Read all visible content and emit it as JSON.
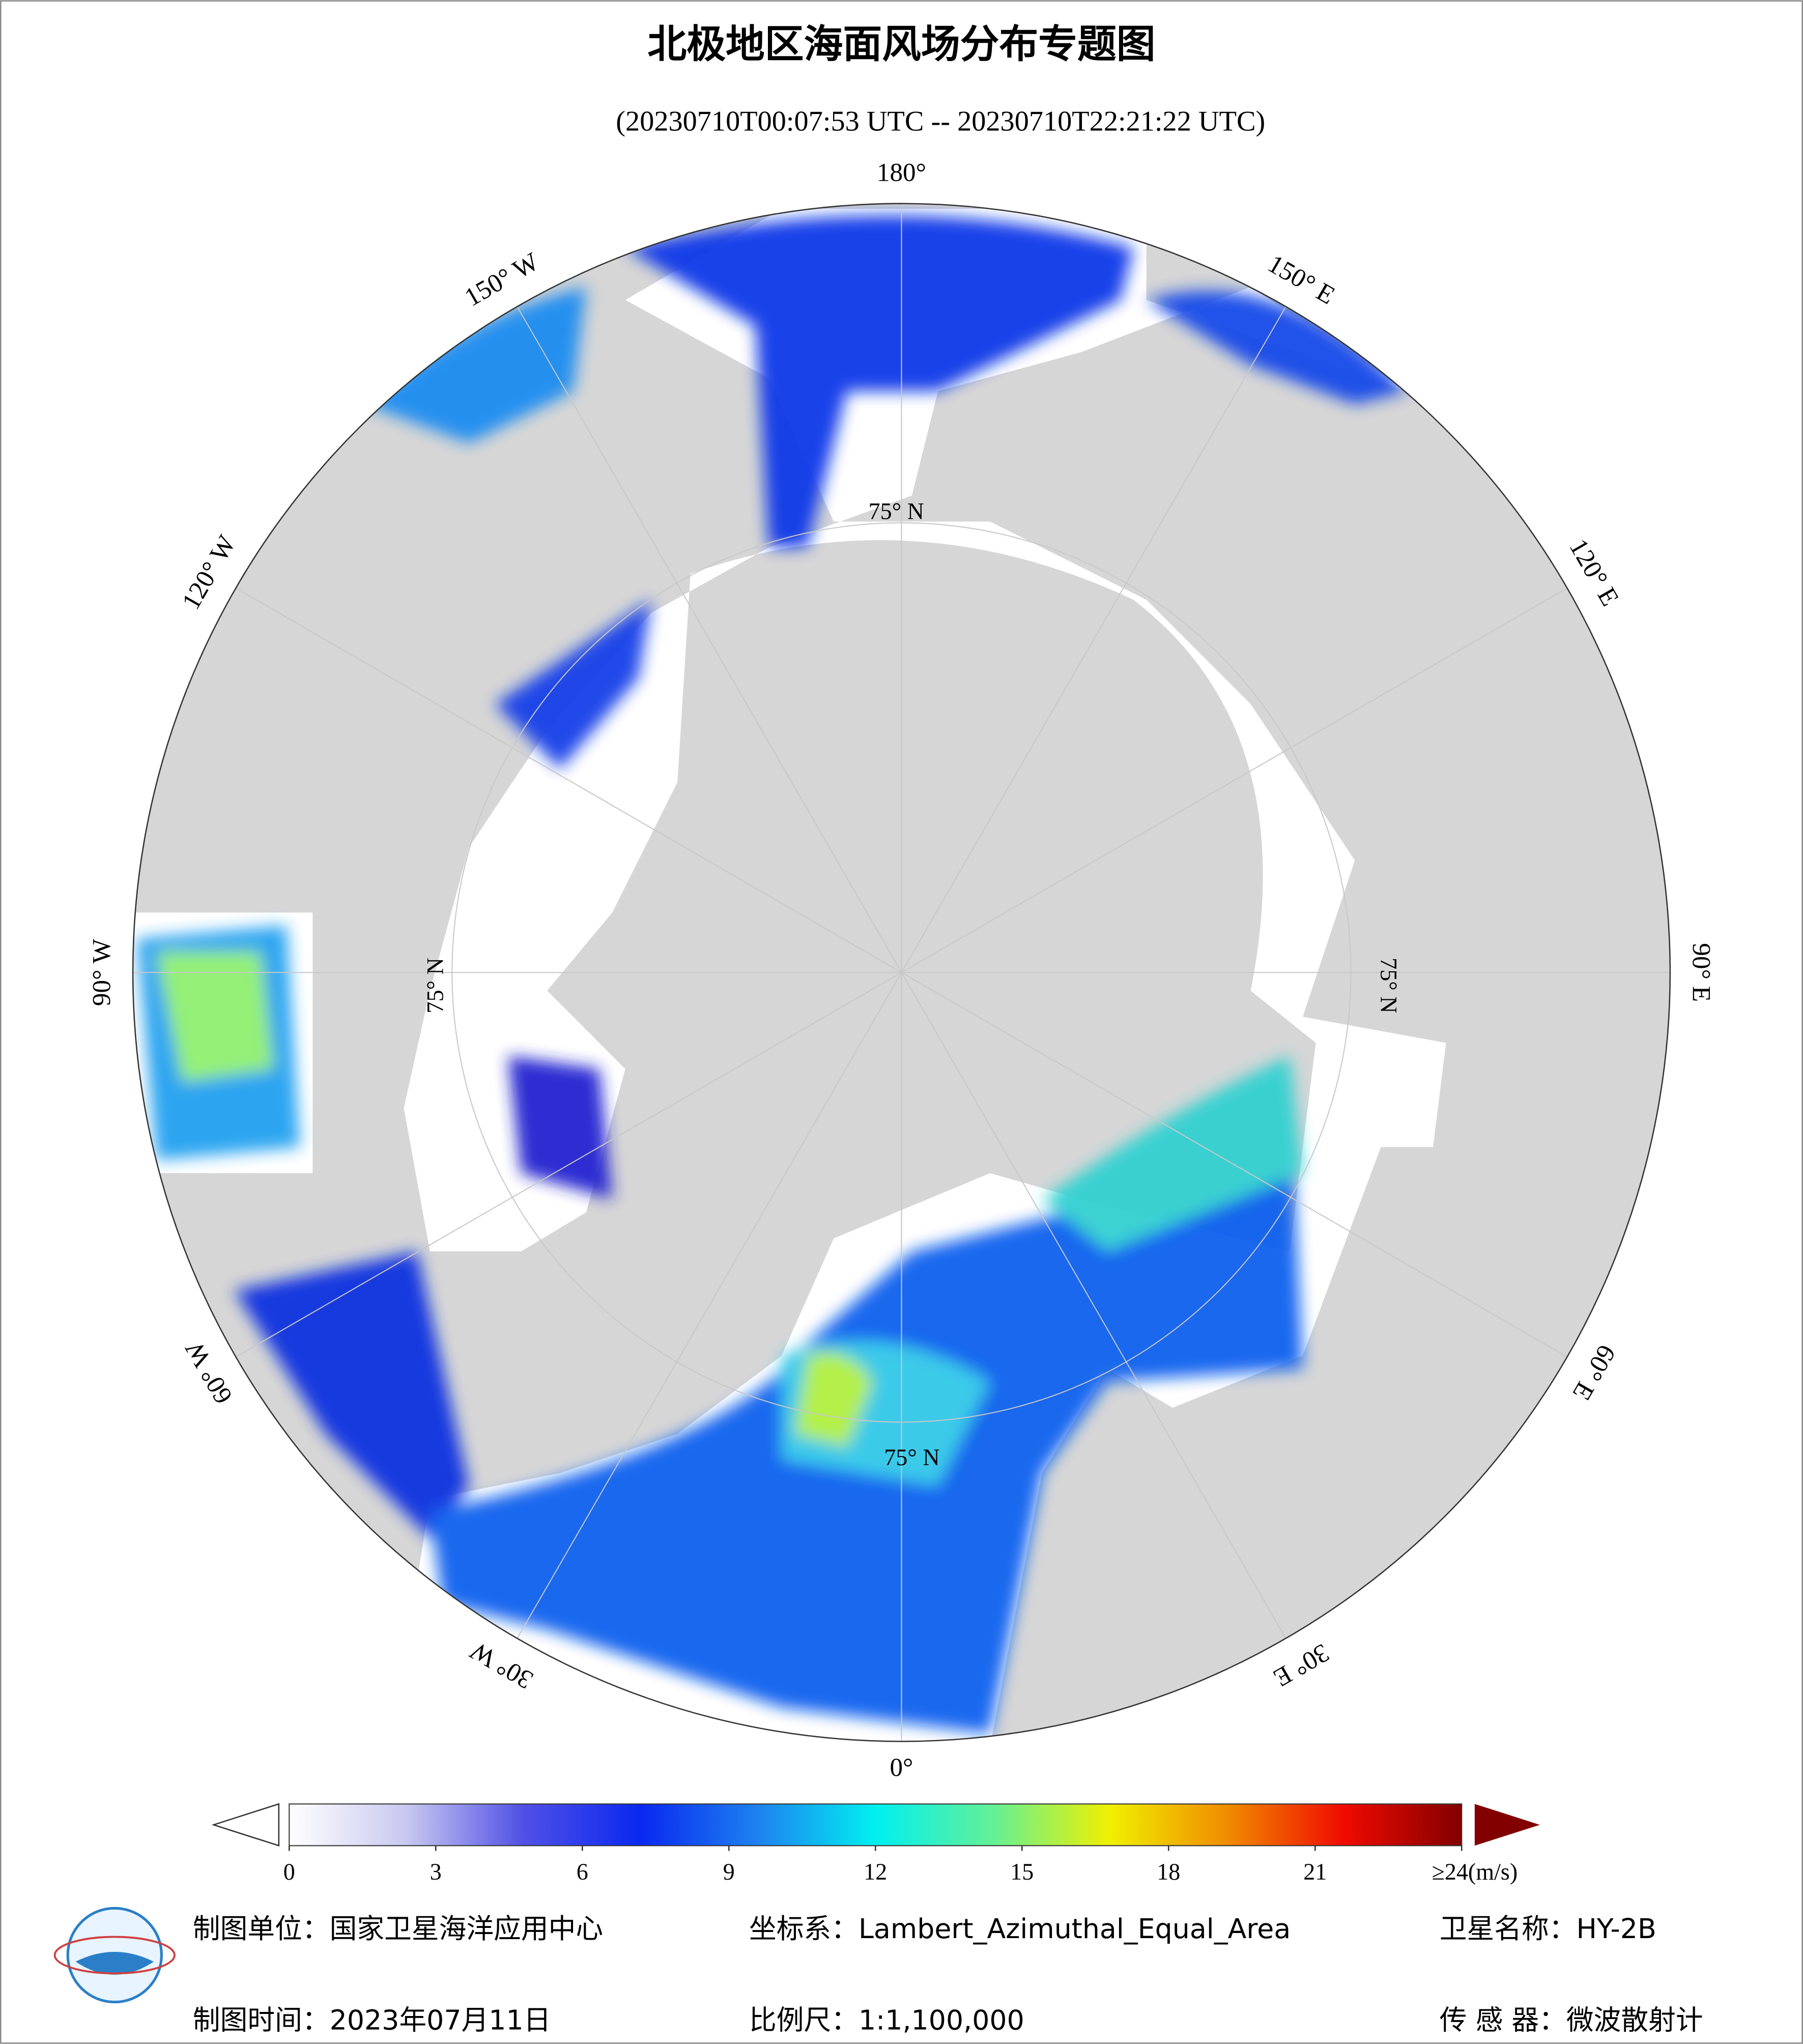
{
  "title": "北极地区海面风场分布专题图",
  "subtitle": "(20230710T00:07:53 UTC -- 20230710T22:21:22 UTC)",
  "map": {
    "lon_labels": [
      "0°",
      "30° E",
      "60° E",
      "90° E",
      "120° E",
      "150° E",
      "180°",
      "150° W",
      "120° W",
      "90° W",
      "60° W",
      "30° W"
    ],
    "lat_labels": [
      "75° N",
      "75° N",
      "75° N",
      "75° N"
    ]
  },
  "colorbar": {
    "range": [
      0,
      24
    ],
    "ticks": [
      0,
      3,
      6,
      9,
      12,
      15,
      18,
      21,
      {
        "value": 24,
        "label": "≥24(m/s)"
      }
    ],
    "colors": [
      "#ffffff",
      "#c8c8f0",
      "#5050e6",
      "#0a28f0",
      "#1e82f0",
      "#00f0f0",
      "#64f096",
      "#f0f000",
      "#f08c00",
      "#f00a00",
      "#820000"
    ]
  },
  "footer": {
    "unit": "制图单位：国家卫星海洋应用中心",
    "crs": "坐标系：Lambert_Azimuthal_Equal_Area",
    "satellite": "卫星名称：HY-2B",
    "date": "制图时间：2023年07月11日",
    "scale": "比例尺：1:1,100,000",
    "sensor": "传 感 器：微波散射计"
  }
}
